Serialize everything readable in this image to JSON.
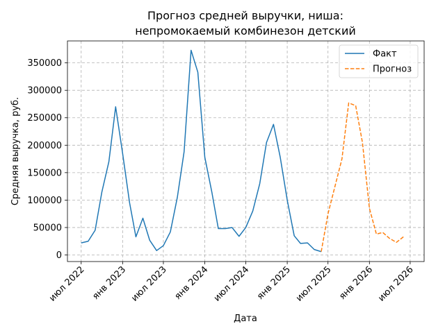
{
  "chart_data": {
    "type": "line",
    "title": [
      "Прогноз средней выручки, ниша:",
      "непромокаемый комбинезон детский"
    ],
    "xlabel": "Дата",
    "ylabel": "Средняя выручка, руб.",
    "ylim": [
      -12000,
      390000
    ],
    "xlim": [
      "2022-05-01",
      "2026-09-01"
    ],
    "yticks": [
      0,
      50000,
      100000,
      150000,
      200000,
      250000,
      300000,
      350000
    ],
    "xticks": [
      {
        "date": "2022-07-01",
        "label": "июл 2022"
      },
      {
        "date": "2023-01-01",
        "label": "янв 2023"
      },
      {
        "date": "2023-07-01",
        "label": "июл 2023"
      },
      {
        "date": "2024-01-01",
        "label": "янв 2024"
      },
      {
        "date": "2024-07-01",
        "label": "июл 2024"
      },
      {
        "date": "2025-01-01",
        "label": "янв 2025"
      },
      {
        "date": "2025-07-01",
        "label": "июл 2025"
      },
      {
        "date": "2026-01-01",
        "label": "янв 2026"
      },
      {
        "date": "2026-07-01",
        "label": "июл 2026"
      }
    ],
    "grid": true,
    "legend_position": "top-right",
    "series": [
      {
        "name": "Факт",
        "color": "#1f77b4",
        "style": "solid",
        "points": [
          [
            "2022-07-01",
            22000
          ],
          [
            "2022-08-01",
            25000
          ],
          [
            "2022-09-01",
            45000
          ],
          [
            "2022-10-01",
            115000
          ],
          [
            "2022-11-01",
            170000
          ],
          [
            "2022-12-01",
            270000
          ],
          [
            "2023-01-01",
            185000
          ],
          [
            "2023-02-01",
            95000
          ],
          [
            "2023-03-01",
            33000
          ],
          [
            "2023-04-01",
            67000
          ],
          [
            "2023-05-01",
            27000
          ],
          [
            "2023-06-01",
            8000
          ],
          [
            "2023-07-01",
            17000
          ],
          [
            "2023-08-01",
            42000
          ],
          [
            "2023-09-01",
            105000
          ],
          [
            "2023-10-01",
            188000
          ],
          [
            "2023-11-01",
            373000
          ],
          [
            "2023-12-01",
            333000
          ],
          [
            "2024-01-01",
            178000
          ],
          [
            "2024-02-01",
            115000
          ],
          [
            "2024-03-01",
            48000
          ],
          [
            "2024-04-01",
            48000
          ],
          [
            "2024-05-01",
            50000
          ],
          [
            "2024-06-01",
            34000
          ],
          [
            "2024-07-01",
            50000
          ],
          [
            "2024-08-01",
            80000
          ],
          [
            "2024-09-01",
            130000
          ],
          [
            "2024-10-01",
            205000
          ],
          [
            "2024-11-01",
            238000
          ],
          [
            "2024-12-01",
            178000
          ],
          [
            "2025-01-01",
            100000
          ],
          [
            "2025-02-01",
            35000
          ],
          [
            "2025-03-01",
            21000
          ],
          [
            "2025-04-01",
            22000
          ],
          [
            "2025-05-01",
            10000
          ],
          [
            "2025-06-01",
            6000
          ]
        ]
      },
      {
        "name": "Прогноз",
        "color": "#ff7f0e",
        "style": "dashed",
        "points": [
          [
            "2025-06-01",
            6000
          ],
          [
            "2025-07-01",
            75000
          ],
          [
            "2025-08-01",
            125000
          ],
          [
            "2025-09-01",
            175000
          ],
          [
            "2025-10-01",
            277000
          ],
          [
            "2025-11-01",
            272000
          ],
          [
            "2025-12-01",
            205000
          ],
          [
            "2026-01-01",
            85000
          ],
          [
            "2026-02-01",
            38000
          ],
          [
            "2026-03-01",
            41000
          ],
          [
            "2026-04-01",
            30000
          ],
          [
            "2026-05-01",
            23000
          ],
          [
            "2026-06-01",
            33000
          ]
        ]
      }
    ]
  }
}
